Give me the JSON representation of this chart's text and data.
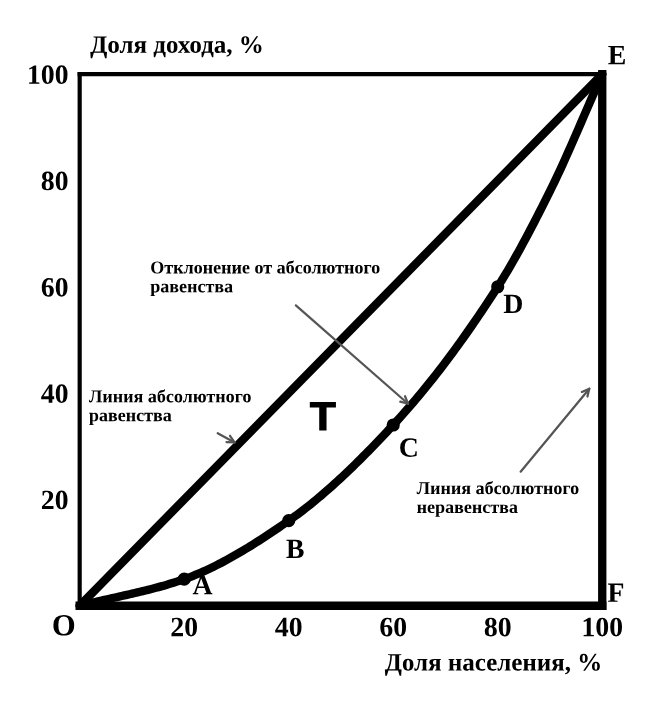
{
  "chart_data": {
    "type": "line",
    "xlabel": "Доля населения, %",
    "ylabel": "Доля дохода, %",
    "xlim": [
      0,
      100
    ],
    "ylim": [
      0,
      100
    ],
    "xticks": [
      20,
      40,
      60,
      80,
      100
    ],
    "yticks": [
      20,
      40,
      60,
      80,
      100
    ],
    "grid": false,
    "legend": false,
    "series": [
      {
        "color": "#000000",
        "x": [
          0,
          100
        ],
        "values": [
          0,
          100
        ],
        "marker": "none"
      },
      {
        "color": "#000000",
        "x": [
          0,
          20,
          40,
          60,
          80,
          90,
          100
        ],
        "values": [
          0,
          5,
          16,
          34,
          60,
          78,
          100
        ],
        "marker": "none"
      },
      {
        "type": "scatter",
        "color": "#000000",
        "x": [
          20,
          40,
          60,
          80
        ],
        "values": [
          5,
          16,
          34,
          60
        ],
        "marker": "circle"
      }
    ],
    "annotations": [
      {
        "text": "O",
        "x": 0,
        "y": 0
      },
      {
        "text": "A",
        "x": 20,
        "y": 5
      },
      {
        "text": "B",
        "x": 40,
        "y": 16
      },
      {
        "text": "C",
        "x": 60,
        "y": 34
      },
      {
        "text": "D",
        "x": 80,
        "y": 60
      },
      {
        "text": "E",
        "x": 100,
        "y": 100
      },
      "F",
      "T",
      {
        "text": "Отклонение от абсолютного\nравенства",
        "x": 64,
        "y": 37
      },
      {
        "text": "Линия абсолютного\nравенства",
        "x": 31,
        "y": 30
      },
      "Линия абсолютного\nнеравенства"
    ]
  }
}
